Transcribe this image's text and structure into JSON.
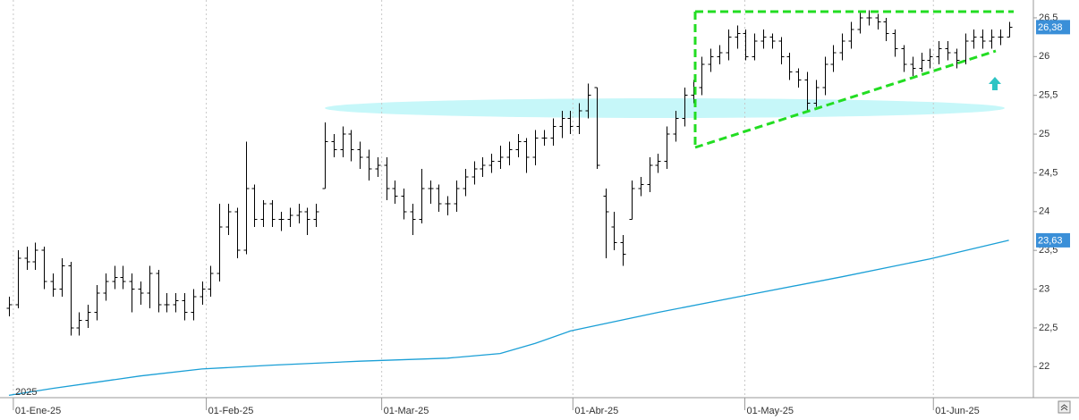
{
  "chart_data": {
    "type": "ohlc",
    "year_label": "2025",
    "xlim": [
      -1.02,
      116.8
    ],
    "xticks": [
      {
        "value": 0.5,
        "label": "01-Ene-25"
      },
      {
        "value": 22.5,
        "label": "01-Feb-25"
      },
      {
        "value": 42.5,
        "label": "01-Mar-25"
      },
      {
        "value": 64.3,
        "label": "01-Abr-25"
      },
      {
        "value": 83.9,
        "label": "01-May-25"
      },
      {
        "value": 105.4,
        "label": "01-Jun-25"
      }
    ],
    "ylim": [
      21.6,
      26.73
    ],
    "yticks": [
      22,
      {
        "value": 22.5,
        "label": "22,5"
      },
      23,
      {
        "value": 23.5,
        "label": "23,5"
      },
      24,
      {
        "value": 24.5,
        "label": "24,5"
      },
      25,
      {
        "value": 25.5,
        "label": "25,5"
      },
      26,
      {
        "value": 26.5,
        "label": "26,5"
      }
    ],
    "grid": true,
    "ohlc": {
      "color": "#000000",
      "open": [
        22.75,
        22.8,
        23.4,
        23.35,
        23.5,
        23.1,
        23.0,
        23.3,
        22.5,
        22.6,
        22.7,
        22.95,
        23.1,
        23.15,
        23.1,
        23.0,
        22.95,
        23.2,
        22.8,
        22.8,
        22.85,
        22.7,
        22.9,
        23.0,
        23.2,
        23.8,
        24.0,
        23.5,
        24.3,
        23.9,
        24.1,
        23.9,
        23.9,
        23.95,
        24.0,
        23.9,
        24.3,
        24.9,
        24.8,
        25.0,
        24.8,
        24.7,
        24.55,
        24.6,
        24.3,
        24.2,
        24.0,
        23.9,
        24.3,
        24.3,
        24.1,
        24.1,
        24.3,
        24.45,
        24.55,
        24.6,
        24.65,
        24.7,
        24.8,
        24.9,
        24.7,
        24.95,
        24.95,
        25.1,
        25.2,
        25.1,
        25.3,
        25.6,
        24.2,
        23.8,
        23.6,
        23.9,
        24.3,
        24.35,
        24.6,
        24.65,
        25.0,
        25.2,
        25.5,
        25.6,
        25.9,
        26.0,
        26.05,
        26.25,
        26.3,
        26.0,
        26.2,
        26.25,
        26.2,
        26.0,
        25.8,
        25.7,
        25.4,
        25.6,
        25.9,
        26.05,
        26.2,
        26.35,
        26.5,
        26.5,
        26.45,
        26.3,
        26.1,
        25.9,
        25.85,
        25.95,
        26.0,
        26.1,
        26.05,
        25.95,
        26.2,
        26.25,
        26.2,
        26.25,
        26.25
      ],
      "high": [
        22.9,
        23.5,
        23.55,
        23.6,
        23.55,
        23.2,
        23.4,
        23.35,
        22.7,
        22.8,
        23.05,
        23.2,
        23.3,
        23.3,
        23.2,
        23.1,
        23.3,
        23.25,
        22.95,
        22.95,
        22.95,
        23.0,
        23.1,
        23.3,
        24.1,
        24.1,
        24.05,
        24.9,
        24.35,
        24.15,
        24.15,
        24.0,
        24.05,
        24.1,
        24.05,
        24.1,
        25.15,
        25.0,
        25.1,
        25.05,
        24.9,
        24.8,
        24.7,
        24.7,
        24.4,
        24.3,
        24.1,
        24.55,
        24.4,
        24.35,
        24.2,
        24.4,
        24.55,
        24.65,
        24.7,
        24.75,
        24.85,
        24.9,
        25.0,
        24.95,
        25.05,
        25.05,
        25.2,
        25.3,
        25.3,
        25.4,
        25.65,
        25.6,
        24.3,
        24.0,
        23.7,
        24.4,
        24.45,
        24.7,
        24.75,
        25.1,
        25.3,
        25.6,
        25.7,
        26.0,
        26.1,
        26.15,
        26.35,
        26.4,
        26.35,
        26.3,
        26.35,
        26.3,
        26.25,
        26.05,
        25.85,
        25.8,
        25.7,
        26.0,
        26.15,
        26.3,
        26.45,
        26.6,
        26.6,
        26.55,
        26.5,
        26.35,
        26.15,
        26.0,
        26.05,
        26.1,
        26.2,
        26.2,
        26.1,
        26.3,
        26.35,
        26.35,
        26.35,
        26.35,
        26.45
      ],
      "low": [
        22.65,
        22.75,
        23.25,
        23.25,
        23.0,
        22.9,
        22.9,
        22.4,
        22.4,
        22.5,
        22.6,
        22.85,
        23.0,
        23.0,
        22.7,
        22.8,
        22.75,
        22.7,
        22.7,
        22.7,
        22.6,
        22.6,
        22.8,
        22.9,
        23.1,
        23.7,
        23.4,
        23.45,
        23.8,
        23.8,
        23.8,
        23.75,
        23.8,
        23.85,
        23.7,
        23.8,
        24.3,
        24.7,
        24.7,
        24.65,
        24.55,
        24.4,
        24.45,
        24.15,
        24.1,
        23.9,
        23.7,
        23.85,
        24.1,
        24.0,
        23.95,
        24.0,
        24.2,
        24.35,
        24.45,
        24.5,
        24.55,
        24.6,
        24.7,
        24.5,
        24.6,
        24.85,
        24.85,
        24.95,
        25.0,
        25.0,
        25.2,
        24.55,
        23.4,
        23.5,
        23.3,
        23.9,
        24.2,
        24.25,
        24.5,
        24.55,
        24.9,
        25.1,
        25.4,
        25.5,
        25.8,
        25.9,
        25.95,
        26.1,
        25.95,
        25.95,
        26.1,
        26.1,
        25.9,
        25.7,
        25.6,
        25.3,
        25.35,
        25.5,
        25.8,
        25.95,
        26.1,
        26.3,
        26.4,
        26.35,
        26.2,
        26.0,
        25.8,
        25.75,
        25.8,
        25.85,
        25.9,
        25.95,
        25.85,
        25.9,
        26.1,
        26.1,
        26.1,
        26.15,
        26.25
      ],
      "close": [
        22.8,
        23.4,
        23.35,
        23.5,
        23.1,
        23.0,
        23.3,
        22.5,
        22.6,
        22.7,
        22.95,
        23.1,
        23.15,
        23.1,
        23.0,
        22.95,
        23.2,
        22.8,
        22.8,
        22.85,
        22.7,
        22.9,
        23.0,
        23.2,
        23.8,
        24.0,
        23.5,
        24.3,
        23.9,
        24.1,
        23.9,
        23.9,
        23.95,
        24.0,
        23.9,
        24.0,
        24.9,
        24.8,
        25.0,
        24.8,
        24.7,
        24.55,
        24.6,
        24.3,
        24.2,
        24.0,
        23.9,
        24.3,
        24.3,
        24.1,
        24.1,
        24.3,
        24.45,
        24.55,
        24.6,
        24.65,
        24.7,
        24.8,
        24.9,
        24.7,
        24.95,
        24.95,
        25.1,
        25.2,
        25.1,
        25.3,
        25.5,
        24.6,
        24.0,
        23.6,
        23.45,
        24.3,
        24.35,
        24.6,
        24.65,
        25.0,
        25.2,
        25.5,
        25.6,
        25.9,
        26.0,
        26.05,
        26.25,
        26.3,
        26.0,
        26.2,
        26.25,
        26.2,
        26.0,
        25.8,
        25.7,
        25.4,
        25.6,
        25.9,
        26.05,
        26.2,
        26.35,
        26.5,
        26.5,
        26.45,
        26.3,
        26.1,
        25.9,
        25.85,
        25.95,
        26.0,
        26.1,
        26.05,
        25.95,
        26.2,
        26.25,
        26.2,
        26.25,
        26.25,
        26.38
      ]
    },
    "moving_average": {
      "color": "#1a9fd6",
      "x": [
        0,
        5,
        10,
        15,
        22,
        30,
        40,
        50,
        56,
        60,
        64,
        74,
        84,
        95,
        105,
        114
      ],
      "values": [
        21.63,
        21.72,
        21.8,
        21.88,
        21.97,
        22.02,
        22.07,
        22.11,
        22.17,
        22.3,
        22.46,
        22.7,
        22.92,
        23.16,
        23.39,
        23.63
      ]
    },
    "price_markers": [
      {
        "value": 26.38,
        "label": "26,38",
        "color": "#3a8fd8"
      },
      {
        "value": 23.63,
        "label": "23,63",
        "color": "#3a8fd8"
      }
    ]
  }
}
